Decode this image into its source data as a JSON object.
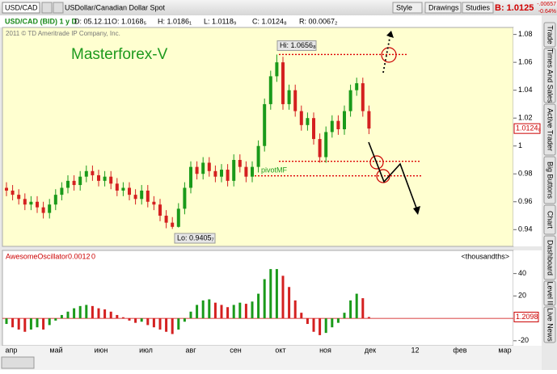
{
  "toolbar": {
    "symbol": "USD/CAD",
    "description": "USDollar/Canadian Dollar Spot",
    "buttons": [
      "Style",
      "Drawings",
      "Studies"
    ],
    "bid": "B: 1.0125",
    "change": "-.00657",
    "change_pct": "-0.64%"
  },
  "quote_bar": {
    "instrument": "USD/CAD (BID) 1 y D",
    "date": "D: 05.12.11",
    "open": "O: 1.0168₅",
    "high": "H: 1.0186₁",
    "low": "L: 1.0118₉",
    "close": "C: 1.0124₈",
    "range": "R: 00.0067₂"
  },
  "side_tabs": [
    "Trade",
    "Times And Sales",
    "Active Trader",
    "Big Buttons",
    "Chart",
    "Dashboard",
    "Level II",
    "Live News"
  ],
  "chart_data": [
    {
      "type": "candlestick",
      "title": "Masterforex-V",
      "copyright": "2011 © TD Ameritrade IP Company, Inc.",
      "high_label": "Hi: 1.0656₈",
      "low_label": "Lo: 0.9405₇",
      "pivot_label": "pivotMF",
      "last_price_label": "1.0124₈",
      "up_color": "#1a9a1a",
      "down_color": "#d42020",
      "level_color": "#dd0000",
      "x_labels": [
        "апр",
        "май",
        "июн",
        "июл",
        "авг",
        "сен",
        "окт",
        "ноя",
        "дек",
        "12",
        "фев",
        "мар"
      ],
      "open": [
        0.97,
        0.968,
        0.965,
        0.962,
        0.958,
        0.96,
        0.956,
        0.952,
        0.958,
        0.965,
        0.97,
        0.975,
        0.972,
        0.978,
        0.982,
        0.979,
        0.975,
        0.978,
        0.973,
        0.968,
        0.97,
        0.965,
        0.962,
        0.968,
        0.96,
        0.958,
        0.95,
        0.945,
        0.942,
        0.955,
        0.97,
        0.985,
        0.98,
        0.988,
        0.982,
        0.978,
        0.983,
        0.975,
        0.99,
        0.985,
        0.978,
        0.985,
        1.0,
        1.03,
        1.05,
        1.06,
        1.03,
        1.04,
        1.025,
        1.015,
        1.02,
        1.005,
        0.992,
        1.01,
        1.018,
        1.012,
        1.025,
        1.04,
        1.045,
        1.025
      ],
      "high": [
        0.974,
        0.972,
        0.969,
        0.966,
        0.964,
        0.964,
        0.96,
        0.962,
        0.969,
        0.974,
        0.979,
        0.979,
        0.982,
        0.986,
        0.986,
        0.983,
        0.982,
        0.982,
        0.977,
        0.974,
        0.974,
        0.969,
        0.972,
        0.972,
        0.964,
        0.962,
        0.954,
        0.949,
        0.959,
        0.974,
        0.989,
        0.989,
        0.992,
        0.992,
        0.986,
        0.987,
        0.987,
        0.994,
        0.994,
        0.989,
        0.989,
        1.004,
        1.034,
        1.054,
        1.0656,
        1.064,
        1.044,
        1.044,
        1.029,
        1.024,
        1.024,
        1.009,
        1.014,
        1.022,
        1.022,
        1.029,
        1.044,
        1.049,
        1.049,
        1.029
      ],
      "low": [
        0.964,
        0.961,
        0.958,
        0.954,
        0.954,
        0.952,
        0.948,
        0.948,
        0.954,
        0.961,
        0.966,
        0.968,
        0.968,
        0.974,
        0.975,
        0.971,
        0.971,
        0.969,
        0.964,
        0.964,
        0.961,
        0.958,
        0.958,
        0.956,
        0.954,
        0.946,
        0.941,
        0.9405,
        0.9415,
        0.951,
        0.966,
        0.976,
        0.976,
        0.978,
        0.974,
        0.974,
        0.971,
        0.971,
        0.981,
        0.974,
        0.974,
        0.981,
        0.996,
        1.026,
        1.046,
        1.026,
        1.026,
        1.021,
        1.011,
        1.011,
        1.001,
        0.988,
        0.988,
        1.006,
        1.008,
        1.008,
        1.021,
        1.036,
        1.021,
        1.0085
      ],
      "close": [
        0.968,
        0.965,
        0.962,
        0.958,
        0.96,
        0.956,
        0.952,
        0.958,
        0.965,
        0.97,
        0.975,
        0.972,
        0.978,
        0.982,
        0.979,
        0.975,
        0.978,
        0.973,
        0.968,
        0.97,
        0.965,
        0.962,
        0.968,
        0.96,
        0.958,
        0.95,
        0.945,
        0.942,
        0.955,
        0.97,
        0.985,
        0.98,
        0.988,
        0.982,
        0.978,
        0.983,
        0.975,
        0.99,
        0.985,
        0.978,
        0.985,
        1.0,
        1.03,
        1.05,
        1.06,
        1.03,
        1.04,
        1.025,
        1.015,
        1.02,
        1.005,
        0.992,
        1.01,
        1.018,
        1.012,
        1.025,
        1.04,
        1.045,
        1.025,
        1.0125
      ],
      "levels": [
        1.0656,
        0.989,
        0.9786
      ],
      "ylim": [
        0.928,
        1.085
      ],
      "yticks": [
        0.94,
        0.96,
        0.98,
        1,
        1.02,
        1.04,
        1.06,
        1.08
      ]
    },
    {
      "type": "bar",
      "title": "AwesomeOscillator",
      "header_values": [
        "0.0012",
        "0"
      ],
      "unit_label": "<thousandths>",
      "last_value_label": "1.2098",
      "up_color": "#1a9a1a",
      "down_color": "#d42020",
      "values": [
        -5,
        -8,
        -10,
        -12,
        -10,
        -8,
        -10,
        -6,
        -2,
        3,
        6,
        9,
        11,
        12,
        11,
        9,
        8,
        6,
        3,
        1,
        -2,
        -4,
        -3,
        -6,
        -8,
        -10,
        -12,
        -14,
        -10,
        -3,
        6,
        12,
        16,
        17,
        14,
        12,
        10,
        12,
        14,
        13,
        15,
        22,
        35,
        44,
        44,
        38,
        28,
        16,
        5,
        -5,
        -12,
        -15,
        -13,
        -8,
        -4,
        5,
        16,
        22,
        18,
        1.2
      ],
      "ylim": [
        -23,
        52
      ],
      "yticks": [
        -20,
        20,
        40
      ]
    }
  ]
}
